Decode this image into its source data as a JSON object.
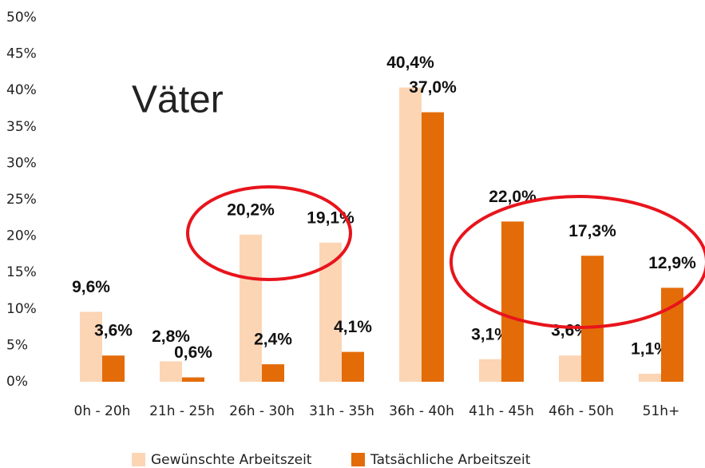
{
  "chart_data": {
    "type": "bar",
    "annotation": "Väter",
    "categories": [
      "0h - 20h",
      "21h - 25h",
      "26h - 30h",
      "31h - 35h",
      "36h - 40h",
      "41h - 45h",
      "46h - 50h",
      "51h+"
    ],
    "series": [
      {
        "name": "Gewünschte Arbeitszeit",
        "color": "#fcd5b5",
        "values": [
          9.6,
          2.8,
          20.2,
          19.1,
          40.4,
          3.1,
          3.6,
          1.1
        ],
        "value_labels": [
          "9,6%",
          "2,8%",
          "20,2%",
          "19,1%",
          "40,4%",
          "3,1%",
          "3,6%",
          "1,1%"
        ]
      },
      {
        "name": "Tatsächliche Arbeitszeit",
        "color": "#e36c09",
        "values": [
          3.6,
          0.6,
          2.4,
          4.1,
          37.0,
          22.0,
          17.3,
          12.9
        ],
        "value_labels": [
          "3,6%",
          "0,6%",
          "2,4%",
          "4,1%",
          "37,0%",
          "22,0%",
          "17,3%",
          "12,9%"
        ]
      }
    ],
    "ylim": [
      0,
      50
    ],
    "yticks": [
      {
        "value": 0,
        "label": "0%"
      },
      {
        "value": 5,
        "label": "5%"
      },
      {
        "value": 10,
        "label": "10%"
      },
      {
        "value": 15,
        "label": "15%"
      },
      {
        "value": 20,
        "label": "20%"
      },
      {
        "value": 25,
        "label": "25%"
      },
      {
        "value": 30,
        "label": "30%"
      },
      {
        "value": 35,
        "label": "35%"
      },
      {
        "value": 40,
        "label": "40%"
      },
      {
        "value": 45,
        "label": "45%"
      },
      {
        "value": 50,
        "label": "50%"
      }
    ],
    "legend": "bottom"
  }
}
